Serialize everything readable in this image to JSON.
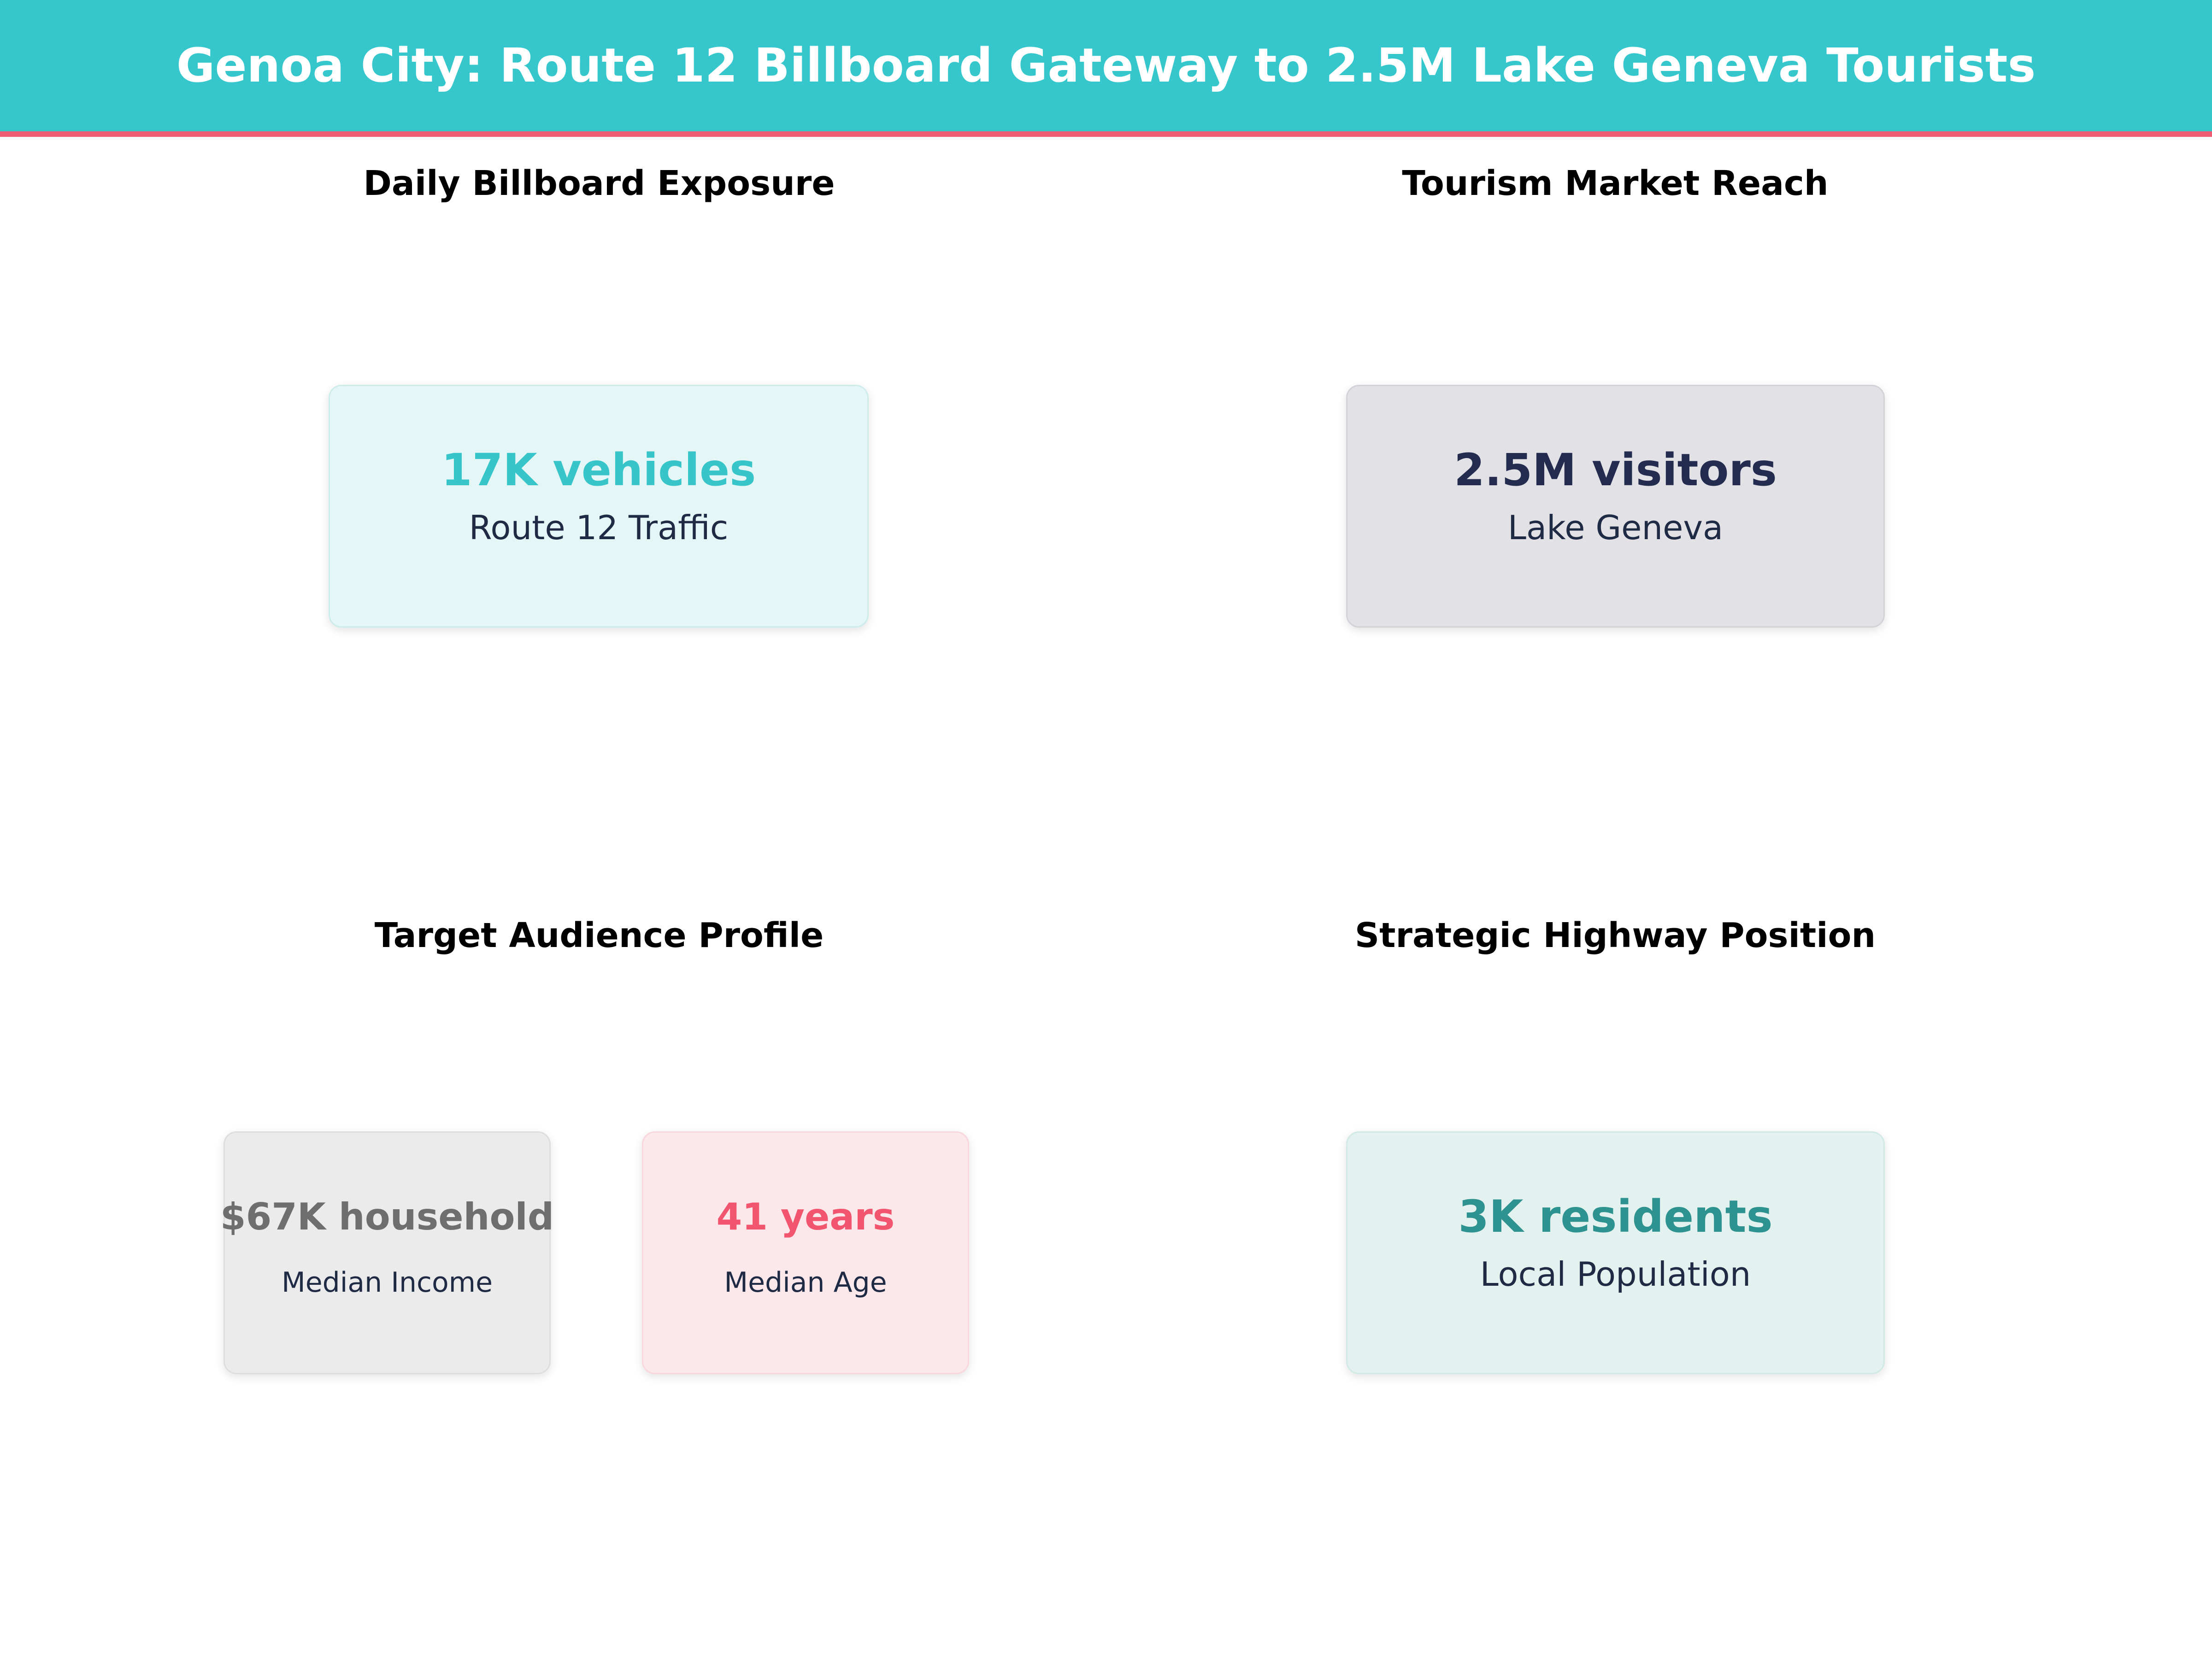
{
  "header": {
    "title": "Genoa City: Route 12 Billboard Gateway to 2.5M Lake Geneva Tourists",
    "bg_color": "#35c7cc",
    "accent_border_color": "#ef5d74",
    "text_color": "#ffffff"
  },
  "heading_color": "#000000",
  "label_color": "#1f2a44",
  "sections": [
    {
      "id": "daily-billboard-exposure",
      "heading": "Daily Billboard Exposure",
      "cards": [
        {
          "value": "17K vehicles",
          "label": "Route 12 Traffic",
          "value_color": "#38c5ca",
          "bg_color": "#e4f7f6",
          "border_color": "#cdecec"
        }
      ]
    },
    {
      "id": "tourism-market-reach",
      "heading": "Tourism Market Reach",
      "cards": [
        {
          "value": "2.5M visitors",
          "label": "Lake Geneva",
          "value_color": "#232c4e",
          "bg_color": "#e2e2e6",
          "border_color": "#d2d2d9"
        }
      ]
    },
    {
      "id": "target-audience-profile",
      "heading": "Target Audience Profile",
      "cards": [
        {
          "value": "$67K household",
          "label": "Median Income",
          "value_color": "#6e6e6e",
          "bg_color": "#ebebeb",
          "border_color": "#dedede"
        },
        {
          "value": "41 years",
          "label": "Median Age",
          "value_color": "#f2566e",
          "bg_color": "#fce8eb",
          "border_color": "#f8d7dd"
        }
      ]
    },
    {
      "id": "strategic-highway-position",
      "heading": "Strategic Highway Position",
      "cards": [
        {
          "value": "3K residents",
          "label": "Local Population",
          "value_color": "#2e9290",
          "bg_color": "#e3f2ef",
          "border_color": "#d2eae5"
        }
      ]
    }
  ]
}
